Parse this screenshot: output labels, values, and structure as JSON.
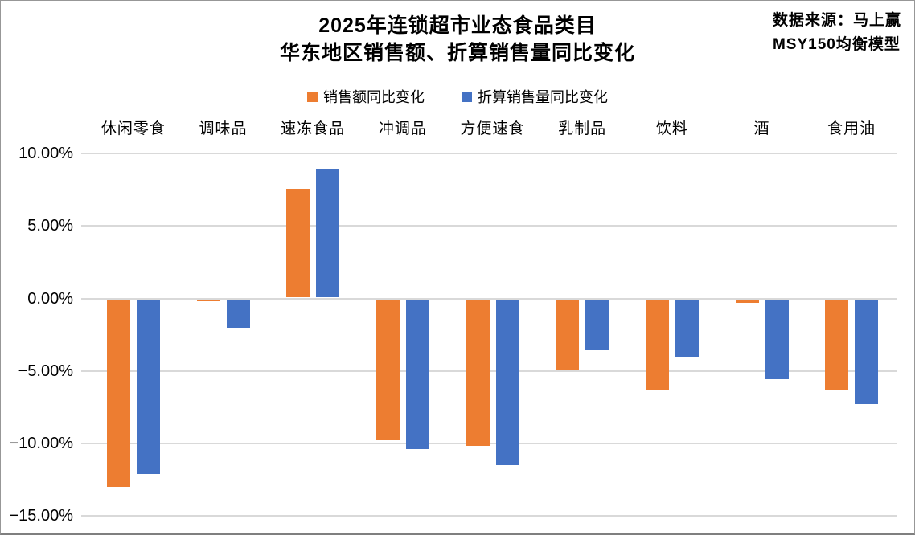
{
  "header": {
    "title_line1": "2025年连锁超市业态食品类目",
    "title_line2": "华东地区销售额、折算销售量同比变化",
    "source_line1": "数据来源：马上赢",
    "source_line2": "MSY150均衡模型"
  },
  "colors": {
    "series_sales_value": "#ED7D31",
    "series_sales_volume": "#4472C4",
    "gridline": "#D9D9D9",
    "text": "#000000",
    "frame_border": "#7F7F7F"
  },
  "chart_data": {
    "type": "bar",
    "title": "2025年连锁超市业态食品类目 华东地区销售额、折算销售量同比变化",
    "subtitle": "数据来源：马上赢 MSY150均衡模型",
    "unit": "%",
    "categories": [
      "休闲零食",
      "调味品",
      "速冻食品",
      "冲调品",
      "方便速食",
      "乳制品",
      "饮料",
      "酒",
      "食用油"
    ],
    "series": [
      {
        "name": "销售额同比变化",
        "color": "#ED7D31",
        "values": [
          -13.0,
          -0.2,
          7.6,
          -9.8,
          -10.2,
          -4.9,
          -6.3,
          -0.3,
          -6.3
        ]
      },
      {
        "name": "折算销售量同比变化",
        "color": "#4472C4",
        "values": [
          -12.1,
          -2.0,
          8.9,
          -10.4,
          -11.5,
          -3.6,
          -4.0,
          -5.6,
          -7.3
        ]
      }
    ],
    "ylim": [
      -15,
      10
    ],
    "yticks": [
      {
        "label": "10.00%",
        "value": 10
      },
      {
        "label": "5.00%",
        "value": 5
      },
      {
        "label": "0.00%",
        "value": 0
      },
      {
        "label": "−5.00%",
        "value": -5
      },
      {
        "label": "−10.00%",
        "value": -10
      },
      {
        "label": "−15.00%",
        "value": -15
      }
    ],
    "grid": true,
    "legend_position": "top",
    "category_labels_position": "top"
  }
}
